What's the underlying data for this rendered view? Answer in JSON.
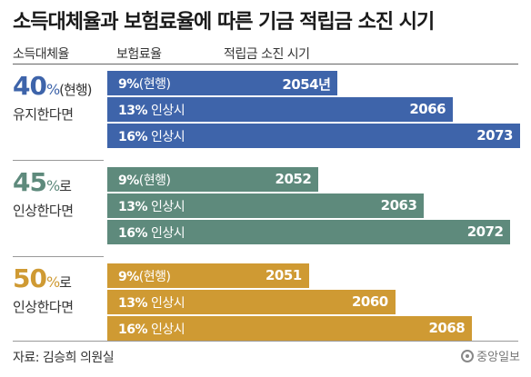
{
  "title": "소득대체율과 보험료율에 따른 기금 적립금 소진 시기",
  "headers": {
    "replacement_rate": "소득대체율",
    "premium_rate": "보험료율",
    "depletion_time": "적립금 소진 시기"
  },
  "source": "자료: 김승희 의원실",
  "logo_text": "중앙일보",
  "colors": {
    "blue": "#3e64aa",
    "green": "#5e8a7c",
    "gold": "#cf9a33",
    "text": "#222222"
  },
  "chart_data": {
    "type": "bar",
    "orientation": "horizontal",
    "title": "소득대체율과 보험료율에 따른 기금 적립금 소진 시기",
    "xlim": [
      2030,
      2073
    ],
    "groups": [
      {
        "pct": "40",
        "unit": "%",
        "suffix": "(현행)",
        "action": "유지한다면",
        "color": "#3e64aa",
        "bars": [
          {
            "rate_pct": "9%",
            "rate_suffix": "(현행)",
            "year": 2054,
            "year_label": "2054년"
          },
          {
            "rate_pct": "13%",
            "rate_suffix": " 인상시",
            "year": 2066,
            "year_label": "2066"
          },
          {
            "rate_pct": "16%",
            "rate_suffix": " 인상시",
            "year": 2073,
            "year_label": "2073"
          }
        ]
      },
      {
        "pct": "45",
        "unit": "%",
        "suffix": "로",
        "action": "인상한다면",
        "color": "#5e8a7c",
        "bars": [
          {
            "rate_pct": "9%",
            "rate_suffix": "(현행)",
            "year": 2052,
            "year_label": "2052"
          },
          {
            "rate_pct": "13%",
            "rate_suffix": " 인상시",
            "year": 2063,
            "year_label": "2063"
          },
          {
            "rate_pct": "16%",
            "rate_suffix": " 인상시",
            "year": 2072,
            "year_label": "2072"
          }
        ]
      },
      {
        "pct": "50",
        "unit": "%",
        "suffix": "로",
        "action": "인상한다면",
        "color": "#cf9a33",
        "bars": [
          {
            "rate_pct": "9%",
            "rate_suffix": "(현행)",
            "year": 2051,
            "year_label": "2051"
          },
          {
            "rate_pct": "13%",
            "rate_suffix": " 인상시",
            "year": 2060,
            "year_label": "2060"
          },
          {
            "rate_pct": "16%",
            "rate_suffix": " 인상시",
            "year": 2068,
            "year_label": "2068"
          }
        ]
      }
    ]
  }
}
